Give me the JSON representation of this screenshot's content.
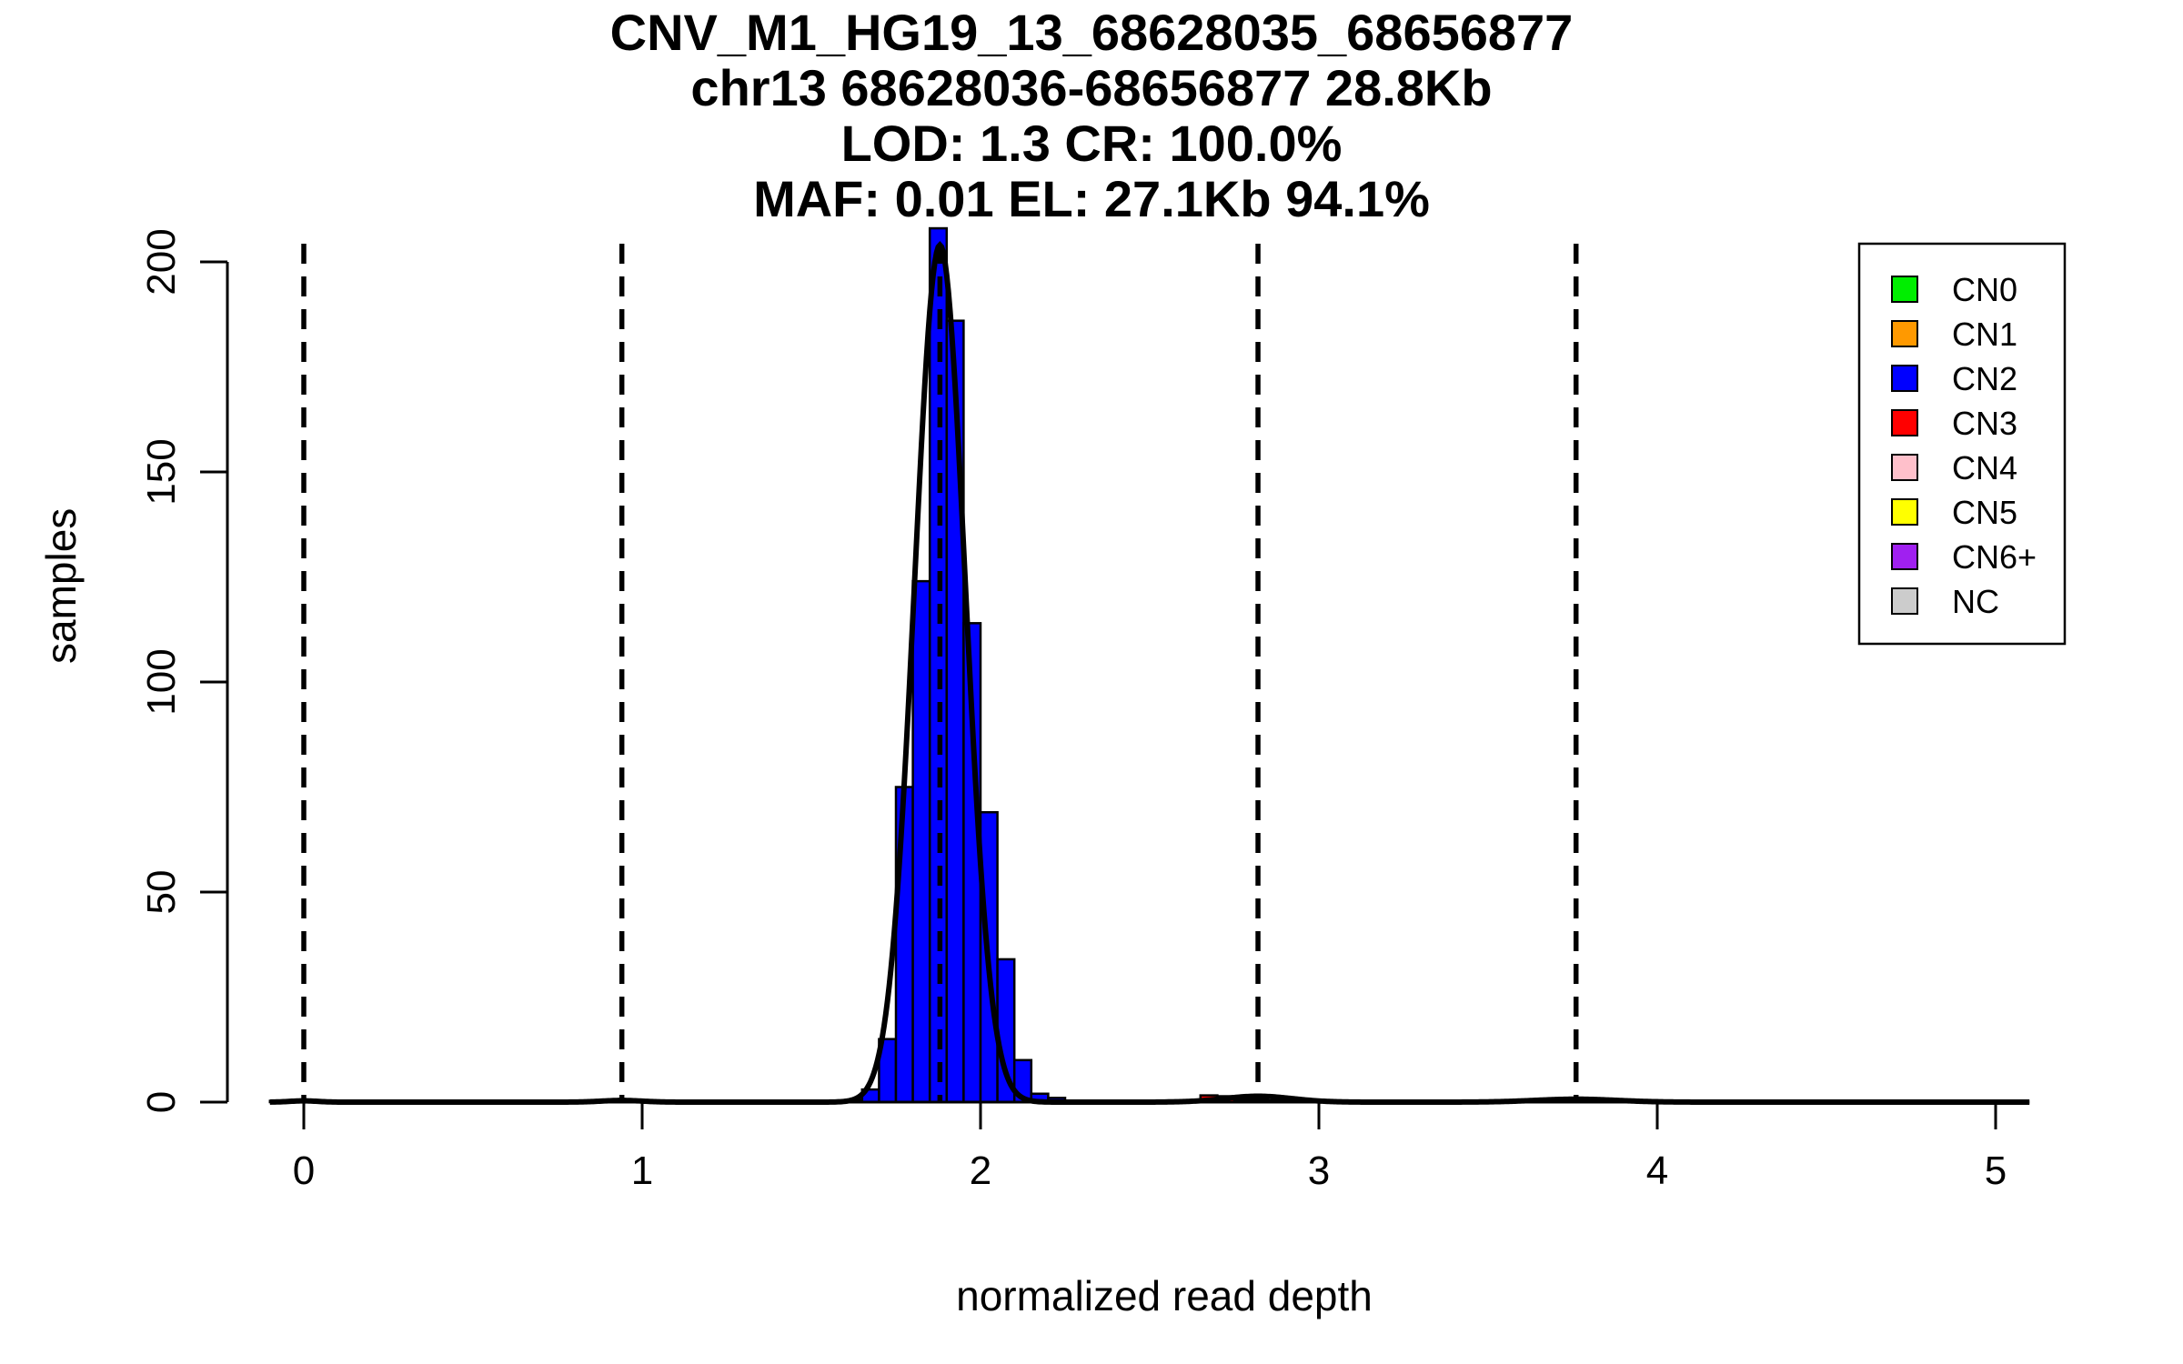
{
  "titles": [
    "CNV_M1_HG19_13_68628035_68656877",
    "chr13 68628036-68656877 28.8Kb",
    "LOD: 1.3 CR: 100.0%",
    "MAF: 0.01 EL: 27.1Kb 94.1%"
  ],
  "chart_data": {
    "type": "bar",
    "xlabel": "normalized read depth",
    "ylabel": "samples",
    "xlim": [
      -0.1,
      5.1
    ],
    "ylim": [
      0,
      200
    ],
    "x_ticks": [
      0,
      1,
      2,
      3,
      4,
      5
    ],
    "y_ticks": [
      0,
      50,
      100,
      150,
      200
    ],
    "grid": false,
    "legend_position": "top-right",
    "legend": [
      {
        "label": "CN0",
        "color": "#00ee00"
      },
      {
        "label": "CN1",
        "color": "#ff9900"
      },
      {
        "label": "CN2",
        "color": "#0000ff"
      },
      {
        "label": "CN3",
        "color": "#ff0000"
      },
      {
        "label": "CN4",
        "color": "#ffc0cb"
      },
      {
        "label": "CN5",
        "color": "#ffff00"
      },
      {
        "label": "CN6+",
        "color": "#a020f0"
      },
      {
        "label": "NC",
        "color": "#cccccc"
      }
    ],
    "dashed_lines_x": [
      0.0,
      0.94,
      1.88,
      2.82,
      3.76
    ],
    "bin_width": 0.05,
    "histogram": [
      {
        "x0": -0.1,
        "x1": -0.05,
        "count": 0.3,
        "color": "#0000ff"
      },
      {
        "x0": -0.05,
        "x1": 0.0,
        "count": 0.4,
        "color": "#0000ff"
      },
      {
        "x0": 0.0,
        "x1": 0.05,
        "count": 0.4,
        "color": "#0000ff"
      },
      {
        "x0": 0.05,
        "x1": 0.1,
        "count": 0.3,
        "color": "#0000ff"
      },
      {
        "x0": 0.7,
        "x1": 0.75,
        "count": 0.3,
        "color": "#0000ff"
      },
      {
        "x0": 0.75,
        "x1": 0.8,
        "count": 0.3,
        "color": "#0000ff"
      },
      {
        "x0": 0.8,
        "x1": 0.85,
        "count": 0.3,
        "color": "#0000ff"
      },
      {
        "x0": 0.85,
        "x1": 0.9,
        "count": 0.3,
        "color": "#0000ff"
      },
      {
        "x0": 0.9,
        "x1": 0.95,
        "count": 0.4,
        "color": "#0000ff"
      },
      {
        "x0": 0.95,
        "x1": 1.0,
        "count": 0.4,
        "color": "#0000ff"
      },
      {
        "x0": 1.0,
        "x1": 1.05,
        "count": 0.3,
        "color": "#0000ff"
      },
      {
        "x0": 1.05,
        "x1": 1.1,
        "count": 0.3,
        "color": "#0000ff"
      },
      {
        "x0": 1.1,
        "x1": 1.15,
        "count": 0.3,
        "color": "#0000ff"
      },
      {
        "x0": 1.6,
        "x1": 1.65,
        "count": 0.5,
        "color": "#0000ff"
      },
      {
        "x0": 1.65,
        "x1": 1.7,
        "count": 3,
        "color": "#0000ff"
      },
      {
        "x0": 1.7,
        "x1": 1.75,
        "count": 15,
        "color": "#0000ff"
      },
      {
        "x0": 1.75,
        "x1": 1.8,
        "count": 75,
        "color": "#0000ff"
      },
      {
        "x0": 1.8,
        "x1": 1.85,
        "count": 124,
        "color": "#0000ff"
      },
      {
        "x0": 1.85,
        "x1": 1.9,
        "count": 208,
        "color": "#0000ff"
      },
      {
        "x0": 1.9,
        "x1": 1.95,
        "count": 186,
        "color": "#0000ff"
      },
      {
        "x0": 1.95,
        "x1": 2.0,
        "count": 114,
        "color": "#0000ff"
      },
      {
        "x0": 2.0,
        "x1": 2.05,
        "count": 69,
        "color": "#0000ff"
      },
      {
        "x0": 2.05,
        "x1": 2.1,
        "count": 34,
        "color": "#0000ff"
      },
      {
        "x0": 2.1,
        "x1": 2.15,
        "count": 10,
        "color": "#0000ff"
      },
      {
        "x0": 2.15,
        "x1": 2.2,
        "count": 2,
        "color": "#0000ff"
      },
      {
        "x0": 2.2,
        "x1": 2.25,
        "count": 1,
        "color": "#0000ff"
      },
      {
        "x0": 2.45,
        "x1": 2.5,
        "count": 0.3,
        "color": "#0000ff"
      },
      {
        "x0": 2.5,
        "x1": 2.55,
        "count": 0.3,
        "color": "#0000ff"
      },
      {
        "x0": 2.55,
        "x1": 2.6,
        "count": 0.4,
        "color": "#0000ff"
      },
      {
        "x0": 2.6,
        "x1": 2.65,
        "count": 0.4,
        "color": "#0000ff"
      },
      {
        "x0": 2.65,
        "x1": 2.7,
        "count": 1.6,
        "color": "#ff0000"
      },
      {
        "x0": 2.7,
        "x1": 2.75,
        "count": 1.4,
        "color": "#ff0000"
      },
      {
        "x0": 2.75,
        "x1": 2.8,
        "count": 0.5,
        "color": "#0000ff"
      },
      {
        "x0": 2.8,
        "x1": 2.85,
        "count": 0.5,
        "color": "#0000ff"
      },
      {
        "x0": 2.85,
        "x1": 2.9,
        "count": 0.4,
        "color": "#0000ff"
      },
      {
        "x0": 2.9,
        "x1": 2.95,
        "count": 0.3,
        "color": "#0000ff"
      },
      {
        "x0": 2.95,
        "x1": 3.0,
        "count": 0.3,
        "color": "#0000ff"
      },
      {
        "x0": 3.0,
        "x1": 3.05,
        "count": 0.3,
        "color": "#0000ff"
      },
      {
        "x0": 3.05,
        "x1": 3.1,
        "count": 0.3,
        "color": "#0000ff"
      },
      {
        "x0": 3.1,
        "x1": 3.15,
        "count": 0.3,
        "color": "#0000ff"
      },
      {
        "x0": 3.15,
        "x1": 3.2,
        "count": 0.3,
        "color": "#0000ff"
      },
      {
        "x0": 3.3,
        "x1": 3.35,
        "count": 0.3,
        "color": "#0000ff"
      },
      {
        "x0": 3.35,
        "x1": 3.4,
        "count": 0.3,
        "color": "#0000ff"
      },
      {
        "x0": 3.4,
        "x1": 3.45,
        "count": 0.3,
        "color": "#0000ff"
      },
      {
        "x0": 3.45,
        "x1": 3.5,
        "count": 0.3,
        "color": "#0000ff"
      },
      {
        "x0": 3.5,
        "x1": 3.55,
        "count": 0.3,
        "color": "#0000ff"
      },
      {
        "x0": 3.55,
        "x1": 3.6,
        "count": 0.3,
        "color": "#0000ff"
      },
      {
        "x0": 3.6,
        "x1": 3.65,
        "count": 0.3,
        "color": "#0000ff"
      },
      {
        "x0": 3.65,
        "x1": 3.7,
        "count": 0.3,
        "color": "#0000ff"
      },
      {
        "x0": 3.7,
        "x1": 3.75,
        "count": 0.6,
        "color": "#0000ff"
      },
      {
        "x0": 3.75,
        "x1": 3.8,
        "count": 0.5,
        "color": "#0000ff"
      },
      {
        "x0": 3.8,
        "x1": 3.85,
        "count": 0.4,
        "color": "#0000ff"
      },
      {
        "x0": 3.85,
        "x1": 3.9,
        "count": 0.3,
        "color": "#0000ff"
      },
      {
        "x0": 3.9,
        "x1": 3.95,
        "count": 0.3,
        "color": "#0000ff"
      },
      {
        "x0": 3.95,
        "x1": 4.0,
        "count": 0.3,
        "color": "#0000ff"
      },
      {
        "x0": 4.0,
        "x1": 4.05,
        "count": 0.3,
        "color": "#0000ff"
      },
      {
        "x0": 4.05,
        "x1": 4.1,
        "count": 0.3,
        "color": "#0000ff"
      },
      {
        "x0": 4.1,
        "x1": 4.15,
        "count": 0.3,
        "color": "#0000ff"
      },
      {
        "x0": 4.15,
        "x1": 4.2,
        "count": 0.3,
        "color": "#0000ff"
      }
    ],
    "fit_curves": [
      {
        "mean": 0.0,
        "sd": 0.04,
        "peak": 0.3
      },
      {
        "mean": 0.94,
        "sd": 0.06,
        "peak": 0.4
      },
      {
        "mean": 1.88,
        "sd": 0.075,
        "peak": 204
      },
      {
        "mean": 2.82,
        "sd": 0.1,
        "peak": 1.4
      },
      {
        "mean": 3.76,
        "sd": 0.12,
        "peak": 0.7
      }
    ]
  }
}
